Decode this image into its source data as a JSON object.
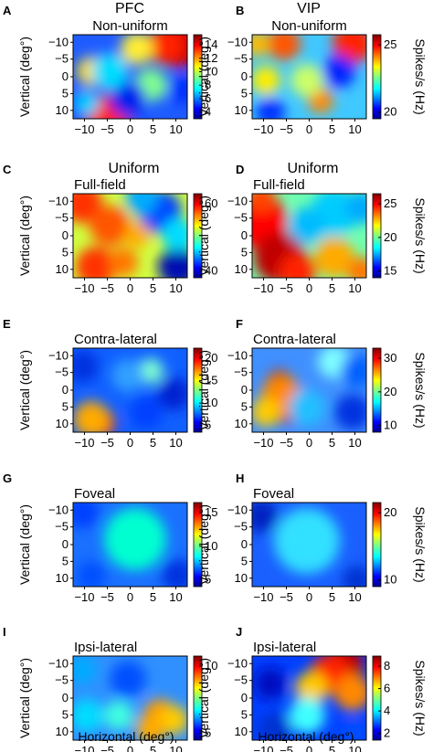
{
  "figure": {
    "column_titles": [
      "PFC",
      "VIP"
    ],
    "y_axis_label": "Vertical (deg°)",
    "x_axis_label": "Horizontal (deg°)",
    "colorbar_label": "Spikes/s (Hz)"
  },
  "chart_data": [
    {
      "type": "heatmap",
      "panel": "A",
      "column": "PFC",
      "title": "",
      "subtitle": "Non-uniform",
      "x_ticks": [
        "−10",
        "−5",
        "0",
        "5",
        "10"
      ],
      "y_ticks": [
        "−10",
        "−5",
        "0",
        "5",
        "10"
      ],
      "colorbar_ticks": [
        "14",
        "12",
        "10",
        "8",
        "6",
        "4"
      ],
      "colorbar_label": ""
    },
    {
      "type": "heatmap",
      "panel": "B",
      "column": "VIP",
      "title": "",
      "subtitle": "Non-uniform",
      "x_ticks": [
        "−10",
        "−5",
        "0",
        "5",
        "10"
      ],
      "y_ticks": [
        "−10",
        "−5",
        "0",
        "5",
        "10"
      ],
      "colorbar_ticks": [
        "25",
        "20"
      ],
      "colorbar_label": "Spikes/s (Hz)"
    },
    {
      "type": "heatmap",
      "panel": "C",
      "column": "PFC",
      "title": "Uniform",
      "subtitle": "Full-field",
      "x_ticks": [
        "−10",
        "−5",
        "0",
        "5",
        "10"
      ],
      "y_ticks": [
        "−10",
        "−5",
        "0",
        "5",
        "10"
      ],
      "colorbar_ticks": [
        "60",
        "40"
      ],
      "colorbar_label": ""
    },
    {
      "type": "heatmap",
      "panel": "D",
      "column": "VIP",
      "title": "Uniform",
      "subtitle": "Full-field",
      "x_ticks": [
        "−10",
        "−5",
        "0",
        "5",
        "10"
      ],
      "y_ticks": [
        "−10",
        "−5",
        "0",
        "5",
        "10"
      ],
      "colorbar_ticks": [
        "25",
        "20",
        "15"
      ],
      "colorbar_label": "Spikes/s (Hz)"
    },
    {
      "type": "heatmap",
      "panel": "E",
      "column": "PFC",
      "title": "",
      "subtitle": "Contra-lateral",
      "x_ticks": [
        "−10",
        "−5",
        "0",
        "5",
        "10"
      ],
      "y_ticks": [
        "−10",
        "−5",
        "0",
        "5",
        "10"
      ],
      "colorbar_ticks": [
        "20",
        "15",
        "10",
        "5"
      ],
      "colorbar_label": ""
    },
    {
      "type": "heatmap",
      "panel": "F",
      "column": "VIP",
      "title": "",
      "subtitle": "Contra-lateral",
      "x_ticks": [
        "−10",
        "−5",
        "0",
        "5",
        "10"
      ],
      "y_ticks": [
        "−10",
        "−5",
        "0",
        "5",
        "10"
      ],
      "colorbar_ticks": [
        "30",
        "20",
        "10"
      ],
      "colorbar_label": "Spikes/s (Hz)"
    },
    {
      "type": "heatmap",
      "panel": "G",
      "column": "PFC",
      "title": "",
      "subtitle": "Foveal",
      "x_ticks": [
        "−10",
        "−5",
        "0",
        "5",
        "10"
      ],
      "y_ticks": [
        "−10",
        "−5",
        "0",
        "5",
        "10"
      ],
      "colorbar_ticks": [
        "15",
        "10",
        "5"
      ],
      "colorbar_label": ""
    },
    {
      "type": "heatmap",
      "panel": "H",
      "column": "VIP",
      "title": "",
      "subtitle": "Foveal",
      "x_ticks": [
        "−10",
        "−5",
        "0",
        "5",
        "10"
      ],
      "y_ticks": [
        "−10",
        "−5",
        "0",
        "5",
        "10"
      ],
      "colorbar_ticks": [
        "20",
        "10"
      ],
      "colorbar_label": "Spikes/s (Hz)"
    },
    {
      "type": "heatmap",
      "panel": "I",
      "column": "PFC",
      "title": "",
      "subtitle": "Ipsi-lateral",
      "x_ticks": [
        "−10",
        "−5",
        "0",
        "5",
        "10"
      ],
      "y_ticks": [
        "−10",
        "−5",
        "0",
        "5",
        "10"
      ],
      "colorbar_ticks": [
        "10",
        "5"
      ],
      "colorbar_label": ""
    },
    {
      "type": "heatmap",
      "panel": "J",
      "column": "VIP",
      "title": "",
      "subtitle": "Ipsi-lateral",
      "x_ticks": [
        "−10",
        "−5",
        "0",
        "5",
        "10"
      ],
      "y_ticks": [
        "−10",
        "−5",
        "0",
        "5",
        "10"
      ],
      "colorbar_ticks": [
        "8",
        "6",
        "4",
        "2"
      ],
      "colorbar_label": "Spikes/s (Hz)"
    }
  ]
}
